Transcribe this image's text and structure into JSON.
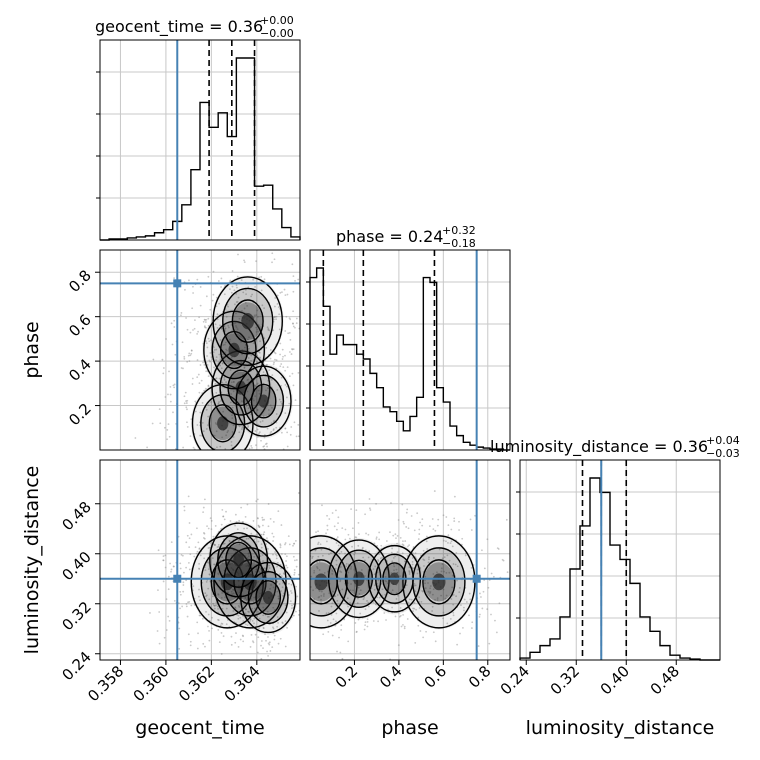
{
  "chart_data": {
    "type": "corner",
    "parameters": [
      "geocent_time",
      "phase",
      "luminosity_distance"
    ],
    "truths": {
      "geocent_time": 0.3605,
      "phase": 0.75,
      "luminosity_distance": 0.36
    },
    "titles": [
      {
        "param": "geocent_time",
        "base": "geocent_time = 0.36",
        "sup": "+0.00",
        "sub": "−0.00"
      },
      {
        "param": "phase",
        "base": "phase = 0.24",
        "sup": "+0.32",
        "sub": "−0.18"
      },
      {
        "param": "luminosity_distance",
        "base": "luminosity_distance = 0.36",
        "sup": "+0.04",
        "sub": "−0.03"
      }
    ],
    "axes": {
      "geocent_time": {
        "range": [
          0.3571,
          0.3659
        ],
        "ticks": [
          0.358,
          0.36,
          0.362,
          0.364
        ],
        "tick_labels": [
          "0.358",
          "0.360",
          "0.362",
          "0.364"
        ]
      },
      "phase": {
        "range": [
          0.0,
          0.9
        ],
        "ticks": [
          0.2,
          0.4,
          0.6,
          0.8
        ],
        "tick_labels": [
          "0.2",
          "0.4",
          "0.6",
          "0.8"
        ]
      },
      "luminosity_distance": {
        "range": [
          0.23,
          0.55
        ],
        "ticks": [
          0.24,
          0.32,
          0.4,
          0.48
        ],
        "tick_labels": [
          "0.24",
          "0.32",
          "0.40",
          "0.48"
        ]
      }
    },
    "xlabels": [
      "geocent_time",
      "phase",
      "luminosity_distance"
    ],
    "ylabels": [
      "phase",
      "luminosity_distance"
    ],
    "hist_1d": {
      "geocent_time": {
        "edges": [
          0.3571,
          0.3575,
          0.3579,
          0.3583,
          0.3587,
          0.3591,
          0.3595,
          0.3599,
          0.3603,
          0.3607,
          0.3611,
          0.3615,
          0.3619,
          0.3623,
          0.3627,
          0.3631,
          0.3635,
          0.3639,
          0.3643,
          0.3647,
          0.3651,
          0.3655,
          0.3659
        ],
        "counts": [
          0,
          1,
          1,
          2,
          3,
          4,
          7,
          10,
          18,
          34,
          68,
          133,
          109,
          123,
          100,
          176,
          176,
          52,
          53,
          30,
          12,
          3
        ],
        "quantiles": [
          0.3619,
          0.3629,
          0.3639
        ]
      },
      "phase": {
        "edges": [
          0.0,
          0.03,
          0.06,
          0.09,
          0.12,
          0.15,
          0.18,
          0.21,
          0.24,
          0.27,
          0.3,
          0.33,
          0.36,
          0.39,
          0.42,
          0.45,
          0.48,
          0.51,
          0.54,
          0.57,
          0.6,
          0.63,
          0.66,
          0.69,
          0.72,
          0.75,
          0.78,
          0.81,
          0.84,
          0.87,
          0.9
        ],
        "counts": [
          180,
          190,
          150,
          100,
          120,
          110,
          110,
          100,
          95,
          80,
          65,
          45,
          40,
          30,
          20,
          35,
          55,
          180,
          175,
          65,
          50,
          25,
          15,
          8,
          5,
          3,
          2,
          1,
          1,
          0
        ],
        "quantiles": [
          0.06,
          0.24,
          0.56
        ]
      },
      "luminosity_distance": {
        "edges": [
          0.23,
          0.246,
          0.262,
          0.278,
          0.294,
          0.31,
          0.326,
          0.342,
          0.358,
          0.374,
          0.39,
          0.406,
          0.422,
          0.438,
          0.454,
          0.47,
          0.486,
          0.502,
          0.518,
          0.534,
          0.55
        ],
        "counts": [
          2,
          8,
          15,
          22,
          45,
          95,
          140,
          190,
          175,
          120,
          105,
          80,
          45,
          30,
          15,
          5,
          2,
          1,
          0,
          0
        ],
        "quantiles": [
          0.33,
          0.36,
          0.4
        ]
      }
    },
    "samples_2d": [
      {
        "x": "geocent_time",
        "y": "phase",
        "centers": [
          [
            0.3625,
            0.12,
            0.6
          ],
          [
            0.3633,
            0.28,
            0.5
          ],
          [
            0.363,
            0.45,
            0.6
          ],
          [
            0.3636,
            0.58,
            0.9
          ],
          [
            0.3643,
            0.22,
            0.4
          ]
        ]
      },
      {
        "x": "geocent_time",
        "y": "luminosity_distance",
        "centers": [
          [
            0.3627,
            0.355,
            1.0
          ],
          [
            0.3637,
            0.355,
            1.0
          ],
          [
            0.3632,
            0.39,
            0.5
          ],
          [
            0.3645,
            0.33,
            0.4
          ]
        ]
      },
      {
        "x": "phase",
        "y": "luminosity_distance",
        "centers": [
          [
            0.05,
            0.355,
            1.0
          ],
          [
            0.22,
            0.36,
            0.6
          ],
          [
            0.58,
            0.355,
            1.0
          ],
          [
            0.38,
            0.36,
            0.3
          ]
        ]
      }
    ]
  }
}
